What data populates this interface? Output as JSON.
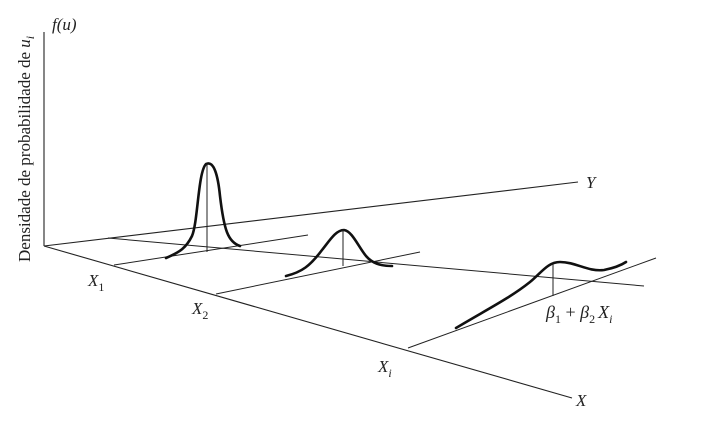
{
  "diagram": {
    "vertical_axis": {
      "label_prefix": "Densidade de probabilidade de ",
      "label_var": "u",
      "label_sub": "i",
      "function_label": "f(u)"
    },
    "axis_y_label": "Y",
    "axis_x_label": "X",
    "x_labels": [
      {
        "var": "X",
        "sub": "1"
      },
      {
        "var": "X",
        "sub": "2"
      },
      {
        "var": "X",
        "sub": "i"
      }
    ],
    "regression_label": {
      "beta1": "β",
      "beta1_sub": "1",
      "plus": " + ",
      "beta2": "β",
      "beta2_sub": "2",
      "xvar": "X",
      "xvar_sub": "i"
    }
  }
}
